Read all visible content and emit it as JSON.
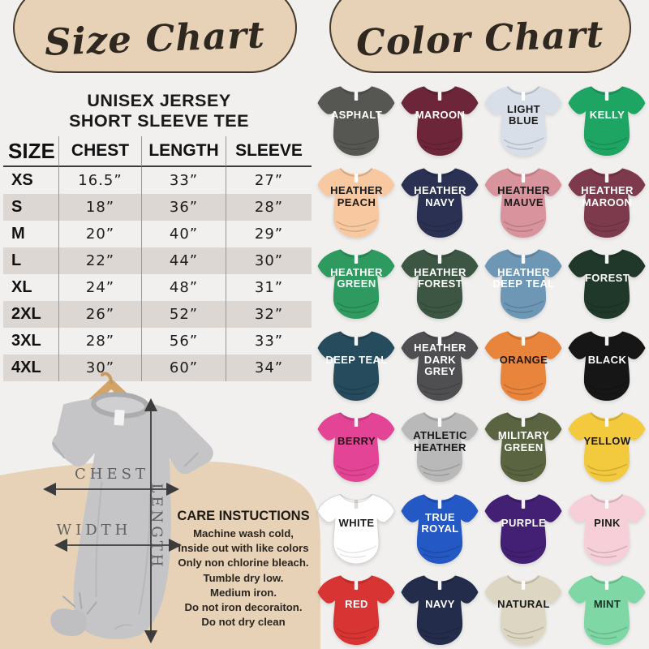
{
  "palette": {
    "page_bg": "#f1f0ef",
    "banner_bg": "#e7d2b8",
    "banner_border": "#45392d",
    "table_stripe": "#ddd7d4",
    "arrow_color": "#3c3c3c",
    "diagram_shirt_color": "#c5c5c7",
    "hanger_color": "#d2a468"
  },
  "headers": {
    "size_chart": "Size Chart",
    "color_chart": "Color Chart"
  },
  "size_section": {
    "title_line1": "UNISEX JERSEY",
    "title_line2": "SHORT SLEEVE TEE",
    "table": {
      "columns": [
        "SIZE",
        "CHEST",
        "LENGTH",
        "SLEEVE"
      ],
      "rows": [
        [
          "XS",
          "16.5”",
          "33”",
          "27”"
        ],
        [
          "S",
          "18”",
          "36”",
          "28”"
        ],
        [
          "M",
          "20”",
          "40”",
          "29”"
        ],
        [
          "L",
          "22”",
          "44”",
          "30”"
        ],
        [
          "XL",
          "24”",
          "48”",
          "31”"
        ],
        [
          "2XL",
          "26”",
          "52”",
          "32”"
        ],
        [
          "3XL",
          "28”",
          "56”",
          "33”"
        ],
        [
          "4XL",
          "30”",
          "60”",
          "34”"
        ]
      ]
    }
  },
  "measure_diagram": {
    "chest_label": "CHEST",
    "width_label": "WIDTH",
    "length_label": "LENGTH"
  },
  "care": {
    "title": "CARE INSTUCTIONS",
    "lines": [
      "Machine wash cold,",
      "inside out with like colors",
      "Only non chlorine bleach.",
      "Tumble dry low.",
      "Medium iron.",
      "Do not iron decoraiton.",
      "Do not dry clean"
    ]
  },
  "color_chart": {
    "colors": [
      {
        "name": "ASPHALT",
        "hex": "#565653",
        "text": "#ffffff"
      },
      {
        "name": "MAROON",
        "hex": "#6d2639",
        "text": "#ffffff"
      },
      {
        "name": "LIGHT BLUE",
        "hex": "#d8dfe9",
        "text": "#1a1a1a"
      },
      {
        "name": "KELLY",
        "hex": "#1fa563",
        "text": "#ffffff"
      },
      {
        "name": "HEATHER PEACH",
        "hex": "#f8c9a0",
        "text": "#1a1a1a"
      },
      {
        "name": "HEATHER NAVY",
        "hex": "#2b3153",
        "text": "#ffffff"
      },
      {
        "name": "HEATHER MAUVE",
        "hex": "#d9939c",
        "text": "#1a1a1a"
      },
      {
        "name": "HEATHER MAROON",
        "hex": "#7e3a4d",
        "text": "#ffffff"
      },
      {
        "name": "HEATHER GREEN",
        "hex": "#2f9a5f",
        "text": "#ffffff"
      },
      {
        "name": "HEATHER FOREST",
        "hex": "#3c5643",
        "text": "#ffffff"
      },
      {
        "name": "HEATHER DEEP TEAL",
        "hex": "#6e97b6",
        "text": "#ffffff"
      },
      {
        "name": "FOREST",
        "hex": "#20382a",
        "text": "#ffffff"
      },
      {
        "name": "DEEP TEAL",
        "hex": "#254b5d",
        "text": "#ffffff"
      },
      {
        "name": "HEATHER DARK GREY",
        "hex": "#4f4f51",
        "text": "#ffffff"
      },
      {
        "name": "ORANGE",
        "hex": "#e8843b",
        "text": "#1a1a1a"
      },
      {
        "name": "BLACK",
        "hex": "#161616",
        "text": "#ffffff"
      },
      {
        "name": "BERRY",
        "hex": "#e44495",
        "text": "#201319"
      },
      {
        "name": "ATHLETIC HEATHER",
        "hex": "#b9b9b9",
        "text": "#1a1a1a"
      },
      {
        "name": "MILITARY GREEN",
        "hex": "#5a6441",
        "text": "#ffffff"
      },
      {
        "name": "YELLOW",
        "hex": "#f3c93e",
        "text": "#1a1a1a"
      },
      {
        "name": "WHITE",
        "hex": "#ffffff",
        "text": "#1a1a1a"
      },
      {
        "name": "TRUE ROYAL",
        "hex": "#2458c5",
        "text": "#ffffff"
      },
      {
        "name": "PURPLE",
        "hex": "#432073",
        "text": "#ffffff"
      },
      {
        "name": "PINK",
        "hex": "#f7cfd8",
        "text": "#1a1a1a"
      },
      {
        "name": "RED",
        "hex": "#d93434",
        "text": "#ffffff"
      },
      {
        "name": "NAVY",
        "hex": "#242c4c",
        "text": "#ffffff"
      },
      {
        "name": "NATURAL",
        "hex": "#ddd6c2",
        "text": "#1a1a1a"
      },
      {
        "name": "MINT",
        "hex": "#7ed7a4",
        "text": "#123524"
      }
    ]
  }
}
